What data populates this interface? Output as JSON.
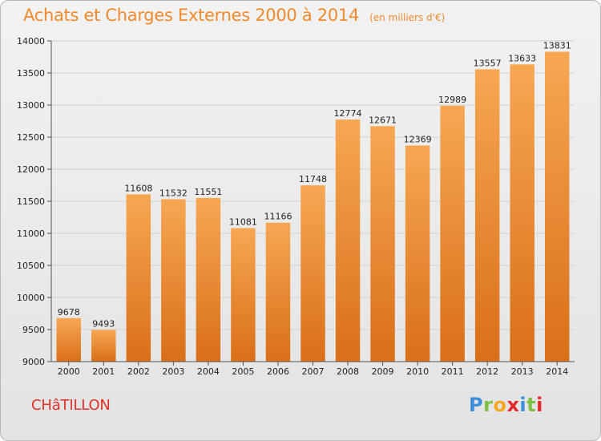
{
  "header": {
    "title": "Achats et Charges Externes 2000 à 2014",
    "subtitle": "(en milliers d'€)"
  },
  "footer": {
    "place": "CHâTILLON",
    "brand": {
      "letters": [
        "P",
        "r",
        "o",
        "x",
        "i",
        "t",
        "i"
      ],
      "colors": [
        "#3a8fd8",
        "#7cc043",
        "#f5a623",
        "#e5282a",
        "#3a8fd8",
        "#7cc043",
        "#e5282a"
      ]
    }
  },
  "colors": {
    "bar_top": "#f7a752",
    "bar_bottom": "#d96f18",
    "grid": "#d0d0d0",
    "axis": "#555555",
    "title": "#f08a2c"
  },
  "chart_data": {
    "type": "bar",
    "title": "Achats et Charges Externes 2000 à 2014",
    "subtitle": "(en milliers d'€)",
    "xlabel": "",
    "ylabel": "",
    "categories": [
      "2000",
      "2001",
      "2002",
      "2003",
      "2004",
      "2005",
      "2006",
      "2007",
      "2008",
      "2009",
      "2010",
      "2011",
      "2012",
      "2013",
      "2014"
    ],
    "values": [
      9678,
      9493,
      11608,
      11532,
      11551,
      11081,
      11166,
      11748,
      12774,
      12671,
      12369,
      12989,
      13557,
      13633,
      13831
    ],
    "ylim": [
      9000,
      14000
    ],
    "yticks": [
      9000,
      9500,
      10000,
      10500,
      11000,
      11500,
      12000,
      12500,
      13000,
      13500,
      14000
    ],
    "grid": true,
    "legend": "none"
  }
}
